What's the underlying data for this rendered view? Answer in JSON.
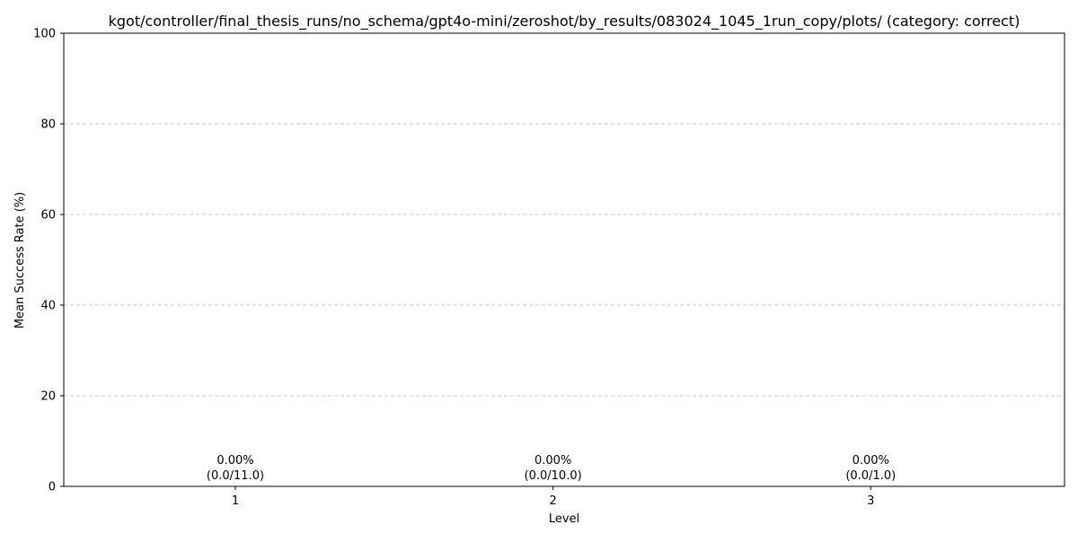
{
  "chart_data": {
    "type": "bar",
    "title": "kgot/controller/final_thesis_runs/no_schema/gpt4o-mini/zeroshot/by_results/083024_1045_1run_copy/plots/ (category: correct)",
    "xlabel": "Level",
    "ylabel": "Mean Success Rate (%)",
    "categories": [
      "1",
      "2",
      "3"
    ],
    "values": [
      0.0,
      0.0,
      0.0
    ],
    "ylim": [
      0,
      100
    ],
    "yticks": [
      "0",
      "20",
      "40",
      "60",
      "80",
      "100"
    ],
    "grid": "y-dashed",
    "bar_labels": [
      {
        "pct": "0.00%",
        "frac": "(0.0/11.0)"
      },
      {
        "pct": "0.00%",
        "frac": "(0.0/10.0)"
      },
      {
        "pct": "0.00%",
        "frac": "(0.0/1.0)"
      }
    ],
    "bar_color": "#1f77b4"
  }
}
